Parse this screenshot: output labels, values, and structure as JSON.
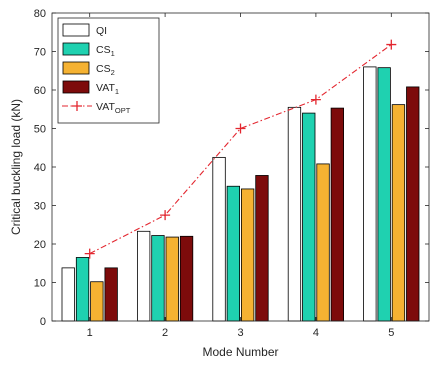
{
  "chart_data": {
    "type": "bar",
    "xlabel": "Mode Number",
    "ylabel": "Critical buckling load (kN)",
    "categories": [
      "1",
      "2",
      "3",
      "4",
      "5"
    ],
    "ylim": [
      0,
      80
    ],
    "yticks": [
      0,
      10,
      20,
      30,
      40,
      50,
      60,
      70,
      80
    ],
    "grid": false,
    "legend_position": "top-left",
    "series": [
      {
        "name": "QI",
        "legend": {
          "base": "QI",
          "sub": ""
        },
        "color": "#ffffff",
        "values": [
          13.8,
          23.3,
          42.5,
          55.5,
          66.0
        ]
      },
      {
        "name": "CS1",
        "legend": {
          "base": "CS",
          "sub": "1"
        },
        "color": "#1fd1b0",
        "values": [
          16.5,
          22.2,
          35.0,
          54.0,
          65.8
        ]
      },
      {
        "name": "CS2",
        "legend": {
          "base": "CS",
          "sub": "2"
        },
        "color": "#f5b232",
        "values": [
          10.2,
          21.8,
          34.3,
          40.8,
          56.2
        ]
      },
      {
        "name": "VAT1",
        "legend": {
          "base": "VAT",
          "sub": "1"
        },
        "color": "#7d0b0b",
        "values": [
          13.8,
          22.0,
          37.8,
          55.3,
          60.8
        ]
      }
    ],
    "line_series": {
      "name": "VATOPT",
      "legend": {
        "base": "VAT",
        "sub": "OPT"
      },
      "color": "#e3262f",
      "style": "dash-dot with + markers",
      "values": [
        17.5,
        27.5,
        50.0,
        57.5,
        71.8
      ]
    }
  }
}
